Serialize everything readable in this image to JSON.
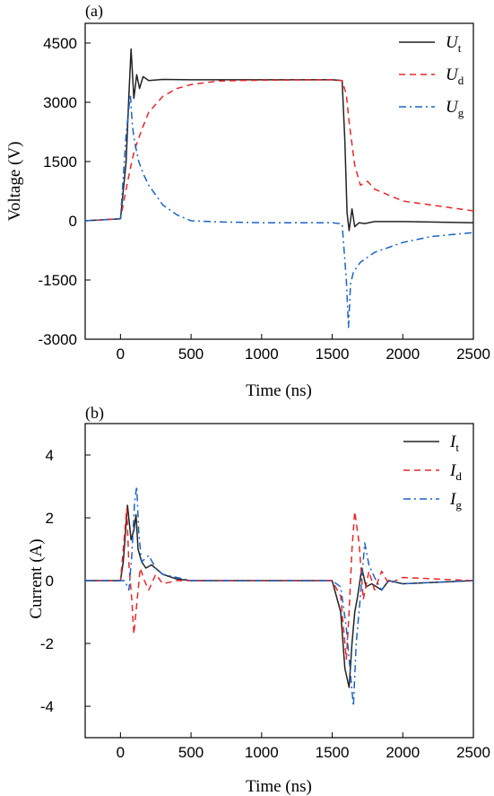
{
  "chart_data": [
    {
      "panel": "(a)",
      "type": "line",
      "xlabel": "Time (ns)",
      "ylabel": "Voltage  (V)",
      "xlim": [
        -250,
        2500
      ],
      "ylim": [
        -3000,
        5000
      ],
      "xticks": [
        0,
        500,
        1000,
        1500,
        2000,
        2500
      ],
      "xtick_labels": [
        "0",
        "500",
        "1000",
        "1500",
        "2000",
        "2500"
      ],
      "yticks": [
        -3000,
        -1500,
        0,
        1500,
        3000,
        4500
      ],
      "ytick_labels": [
        "-3000",
        "-1500",
        "0",
        "1500",
        "3000",
        "4500"
      ],
      "legend_position": "top-right",
      "series": [
        {
          "name": "U",
          "sub": "t",
          "color": "#222222",
          "dash": "solid",
          "x": [
            -250,
            0,
            40,
            60,
            75,
            95,
            115,
            135,
            160,
            200,
            300,
            500,
            1000,
            1500,
            1570,
            1590,
            1605,
            1620,
            1640,
            1660,
            1690,
            1730,
            1800,
            2000,
            2500
          ],
          "y": [
            0,
            50,
            1500,
            3200,
            4350,
            3100,
            3700,
            3350,
            3650,
            3550,
            3580,
            3570,
            3570,
            3570,
            3550,
            2000,
            200,
            -250,
            300,
            -150,
            -50,
            -70,
            -20,
            -20,
            -50
          ]
        },
        {
          "name": "U",
          "sub": "d",
          "color": "#e8262b",
          "dash": "dashed",
          "x": [
            -250,
            0,
            40,
            80,
            100,
            150,
            200,
            300,
            400,
            500,
            700,
            1000,
            1500,
            1570,
            1600,
            1620,
            1660,
            1700,
            1750,
            1800,
            2000,
            2500
          ],
          "y": [
            0,
            50,
            800,
            1500,
            1800,
            2300,
            2750,
            3150,
            3350,
            3450,
            3540,
            3560,
            3570,
            3550,
            3200,
            2500,
            1400,
            900,
            1000,
            800,
            500,
            250
          ]
        },
        {
          "name": "U",
          "sub": "g",
          "color": "#1b63c4",
          "dash": "dashdot",
          "x": [
            -250,
            0,
            40,
            70,
            85,
            100,
            130,
            160,
            200,
            300,
            400,
            500,
            700,
            1000,
            1500,
            1570,
            1600,
            1615,
            1630,
            1650,
            1700,
            1800,
            2000,
            2200,
            2500
          ],
          "y": [
            0,
            50,
            2200,
            3200,
            2400,
            2000,
            1500,
            1200,
            900,
            400,
            150,
            0,
            -30,
            -50,
            -50,
            -80,
            -1500,
            -2700,
            -1600,
            -1300,
            -1050,
            -800,
            -550,
            -400,
            -300
          ]
        }
      ]
    },
    {
      "panel": "(b)",
      "type": "line",
      "xlabel": "Time (ns)",
      "ylabel": "Current  (A)",
      "xlim": [
        -250,
        2500
      ],
      "ylim": [
        -5,
        5
      ],
      "xticks": [
        0,
        500,
        1000,
        1500,
        2000,
        2500
      ],
      "xtick_labels": [
        "0",
        "500",
        "1000",
        "1500",
        "2000",
        "2500"
      ],
      "yticks": [
        -4,
        -2,
        0,
        2,
        4
      ],
      "ytick_labels": [
        "-4",
        "-2",
        "0",
        "2",
        "4"
      ],
      "legend_position": "top-right",
      "series": [
        {
          "name": "I",
          "sub": "t",
          "color": "#222222",
          "dash": "solid",
          "x": [
            -250,
            0,
            20,
            50,
            75,
            95,
            110,
            125,
            150,
            180,
            220,
            300,
            400,
            500,
            1000,
            1500,
            1560,
            1590,
            1620,
            1640,
            1660,
            1680,
            1710,
            1740,
            1780,
            1850,
            1900,
            2000,
            2500
          ],
          "y": [
            0,
            0,
            0.6,
            2.4,
            1.3,
            1.6,
            2.1,
            1.0,
            0.6,
            0.4,
            0.5,
            0.2,
            0.05,
            0,
            0,
            0,
            -1.0,
            -2.8,
            -3.4,
            -2.0,
            -1.0,
            -0.5,
            0.4,
            -0.2,
            -0.1,
            -0.3,
            0,
            -0.1,
            0
          ]
        },
        {
          "name": "I",
          "sub": "d",
          "color": "#e8262b",
          "dash": "dashed",
          "x": [
            -250,
            0,
            20,
            45,
            60,
            80,
            95,
            110,
            140,
            170,
            200,
            250,
            300,
            400,
            1000,
            1500,
            1560,
            1600,
            1620,
            1640,
            1660,
            1690,
            1720,
            1760,
            1800,
            1850,
            1900,
            2000,
            2500
          ],
          "y": [
            0,
            0,
            1.0,
            2.3,
            0.5,
            -0.6,
            -1.7,
            -1.0,
            0.4,
            0.0,
            -0.3,
            0.2,
            -0.1,
            0,
            0,
            0,
            -0.5,
            -2.5,
            -1.0,
            1.0,
            2.2,
            1.2,
            -0.6,
            0.3,
            -0.3,
            0.3,
            -0.1,
            0.1,
            0
          ]
        },
        {
          "name": "I",
          "sub": "g",
          "color": "#1b63c4",
          "dash": "dashdot",
          "x": [
            -250,
            0,
            30,
            60,
            80,
            100,
            115,
            130,
            150,
            200,
            250,
            300,
            400,
            500,
            1000,
            1500,
            1560,
            1600,
            1630,
            1650,
            1670,
            1700,
            1730,
            1760,
            1800,
            1850,
            1900,
            2000,
            2500
          ],
          "y": [
            0,
            0,
            0,
            -0.3,
            0.8,
            2.5,
            3.0,
            1.5,
            0.6,
            0.8,
            0.4,
            0.2,
            0.1,
            0,
            0,
            0,
            -0.2,
            -1.5,
            -3.0,
            -4.0,
            -2.0,
            -0.5,
            1.2,
            0.5,
            0.1,
            -0.3,
            0,
            -0.1,
            0
          ]
        }
      ]
    }
  ]
}
